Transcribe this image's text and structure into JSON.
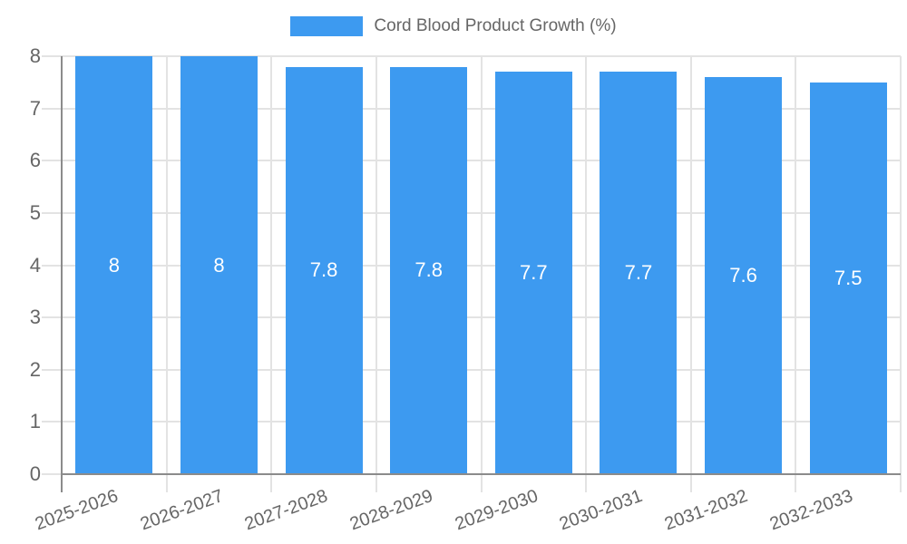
{
  "chart_data": {
    "type": "bar",
    "title": "Cord Blood Product Growth (%)",
    "legend": {
      "label": "Cord Blood Product Growth (%)",
      "position": "top-center"
    },
    "categories": [
      "2025-2026",
      "2026-2027",
      "2027-2028",
      "2028-2029",
      "2029-2030",
      "2030-2031",
      "2031-2032",
      "2032-2033"
    ],
    "values": [
      8,
      8,
      7.8,
      7.8,
      7.7,
      7.7,
      7.6,
      7.5
    ],
    "value_labels": [
      "8",
      "8",
      "7.8",
      "7.8",
      "7.7",
      "7.7",
      "7.6",
      "7.5"
    ],
    "xlabel": "",
    "ylabel": "",
    "ylim": [
      0,
      8
    ],
    "yticks": [
      "0",
      "1",
      "2",
      "3",
      "4",
      "5",
      "6",
      "7",
      "8"
    ],
    "grid": true,
    "x_label_rotation_deg": -20,
    "colors": {
      "bar": "#3D9AF0",
      "grid_line": "#e3e3e3",
      "axis_line": "#8b8b8b",
      "tick_text": "#666666",
      "legend_text": "#666666",
      "bar_label_text": "#ffffff",
      "background": "#ffffff"
    }
  }
}
